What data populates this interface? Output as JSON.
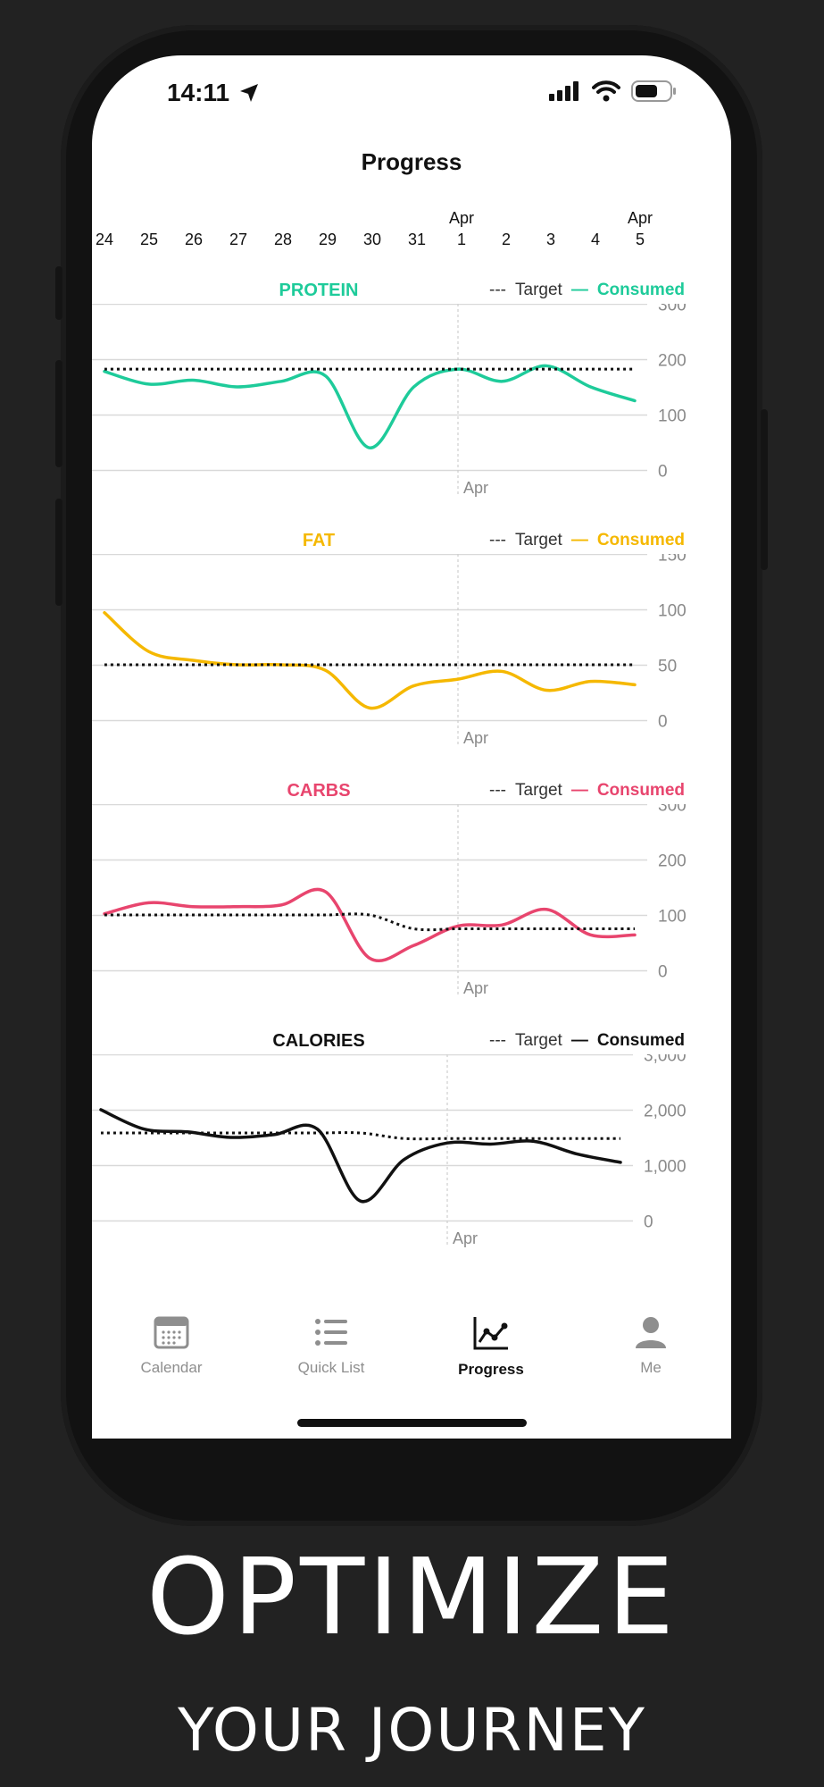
{
  "status_bar": {
    "time": "14:11"
  },
  "page_title": "Progress",
  "date_strip": {
    "days": [
      "24",
      "25",
      "26",
      "27",
      "28",
      "29",
      "30",
      "31",
      "1",
      "2",
      "3",
      "4",
      "5"
    ],
    "month_markers": [
      {
        "day_index": 8,
        "label": "Apr"
      },
      {
        "day_index": 12,
        "label": "Apr"
      }
    ]
  },
  "legend": {
    "target_dash": "---",
    "target_label": "Target",
    "consumed_dash": "—",
    "consumed_label": "Consumed"
  },
  "colors": {
    "protein": "#1ecb9a",
    "fat": "#f5b800",
    "carbs": "#e8456e",
    "calories": "#111111",
    "grid": "#d9d9d9",
    "axis_text": "#8a8a8a"
  },
  "chart_data": [
    {
      "type": "line",
      "title": "PROTEIN",
      "color_key": "protein",
      "x": [
        "24",
        "25",
        "26",
        "27",
        "28",
        "29",
        "30",
        "31",
        "1",
        "2",
        "3",
        "4",
        "5"
      ],
      "x_marker": {
        "index": 8,
        "label": "Apr"
      },
      "yticks": [
        "300",
        "200",
        "100",
        "0"
      ],
      "ylim": [
        0,
        300
      ],
      "series": [
        {
          "name": "Consumed",
          "values": [
            178,
            155,
            162,
            150,
            160,
            170,
            40,
            150,
            182,
            160,
            188,
            150,
            125
          ]
        },
        {
          "name": "Target",
          "values": [
            182,
            182,
            182,
            182,
            182,
            182,
            182,
            182,
            182,
            182,
            182,
            182,
            182
          ]
        }
      ]
    },
    {
      "type": "line",
      "title": "FAT",
      "color_key": "fat",
      "x": [
        "24",
        "25",
        "26",
        "27",
        "28",
        "29",
        "30",
        "31",
        "1",
        "2",
        "3",
        "4",
        "5"
      ],
      "x_marker": {
        "index": 8,
        "label": "Apr"
      },
      "yticks": [
        "150",
        "100",
        "50",
        "0"
      ],
      "ylim": [
        0,
        150
      ],
      "series": [
        {
          "name": "Consumed",
          "values": [
            97,
            62,
            54,
            50,
            50,
            45,
            11,
            31,
            37,
            44,
            27,
            35,
            32
          ]
        },
        {
          "name": "Target",
          "values": [
            50,
            50,
            50,
            50,
            50,
            50,
            50,
            50,
            50,
            50,
            50,
            50,
            50
          ]
        }
      ]
    },
    {
      "type": "line",
      "title": "CARBS",
      "color_key": "carbs",
      "x": [
        "24",
        "25",
        "26",
        "27",
        "28",
        "29",
        "30",
        "31",
        "1",
        "2",
        "3",
        "4",
        "5"
      ],
      "x_marker": {
        "index": 8,
        "label": "Apr"
      },
      "yticks": [
        "300",
        "200",
        "100",
        "0"
      ],
      "ylim": [
        0,
        300
      ],
      "series": [
        {
          "name": "Consumed",
          "values": [
            102,
            122,
            115,
            115,
            118,
            142,
            22,
            45,
            80,
            82,
            110,
            64,
            64
          ]
        },
        {
          "name": "Target",
          "values": [
            100,
            100,
            100,
            100,
            100,
            100,
            100,
            75,
            75,
            75,
            75,
            75,
            75
          ]
        }
      ]
    },
    {
      "type": "line",
      "title": "CALORIES",
      "color_key": "calories",
      "x": [
        "24",
        "25",
        "26",
        "27",
        "28",
        "29",
        "30",
        "31",
        "1",
        "2",
        "3",
        "4",
        "5"
      ],
      "x_marker": {
        "index": 8,
        "label": "Apr"
      },
      "yticks": [
        "3,000",
        "2,000",
        "1,000",
        "0"
      ],
      "ylim": [
        0,
        3000
      ],
      "series": [
        {
          "name": "Consumed",
          "values": [
            2000,
            1650,
            1600,
            1500,
            1550,
            1650,
            350,
            1100,
            1400,
            1380,
            1430,
            1200,
            1050
          ]
        },
        {
          "name": "Target",
          "values": [
            1580,
            1580,
            1580,
            1580,
            1580,
            1580,
            1580,
            1480,
            1480,
            1480,
            1480,
            1480,
            1480
          ]
        }
      ]
    }
  ],
  "tab_bar": {
    "items": [
      {
        "label": "Calendar",
        "icon": "calendar-icon"
      },
      {
        "label": "Quick List",
        "icon": "list-icon"
      },
      {
        "label": "Progress",
        "icon": "chart-icon",
        "active": true
      },
      {
        "label": "Me",
        "icon": "person-icon"
      }
    ]
  },
  "promo": {
    "headline": "OPTIMIZE",
    "subheadline": "YOUR JOURNEY"
  }
}
